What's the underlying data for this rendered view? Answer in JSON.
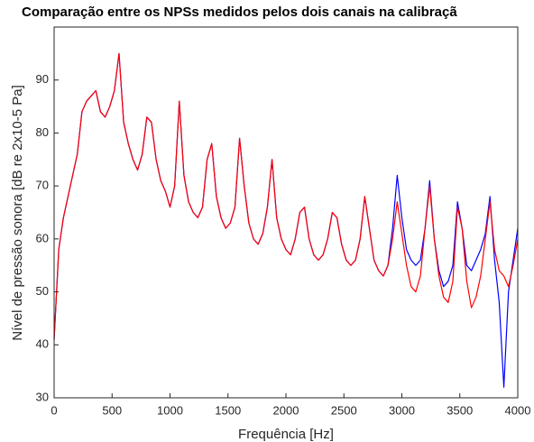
{
  "chart_data": {
    "type": "line",
    "title": "Comparação entre os NPSs medidos pelos dois canais na calibraçã",
    "x_label": "Frequência [Hz]",
    "y_label": "Nível de pressão sonora [dB re 2x10-5 Pa]",
    "x": [
      0,
      40,
      80,
      120,
      160,
      200,
      240,
      280,
      320,
      360,
      400,
      440,
      480,
      520,
      560,
      600,
      640,
      680,
      720,
      760,
      800,
      840,
      880,
      920,
      960,
      1000,
      1040,
      1080,
      1120,
      1160,
      1200,
      1240,
      1280,
      1320,
      1360,
      1400,
      1440,
      1480,
      1520,
      1560,
      1600,
      1640,
      1680,
      1720,
      1760,
      1800,
      1840,
      1880,
      1920,
      1960,
      2000,
      2040,
      2080,
      2120,
      2160,
      2200,
      2240,
      2280,
      2320,
      2360,
      2400,
      2440,
      2480,
      2520,
      2560,
      2600,
      2640,
      2680,
      2720,
      2760,
      2800,
      2840,
      2880,
      2920,
      2960,
      3000,
      3040,
      3080,
      3120,
      3160,
      3200,
      3240,
      3280,
      3320,
      3360,
      3400,
      3440,
      3480,
      3520,
      3560,
      3600,
      3640,
      3680,
      3720,
      3760,
      3800,
      3840,
      3880,
      3920,
      3960,
      4000
    ],
    "series": [
      {
        "color": "#0000ff",
        "values": [
          41,
          58,
          64,
          68,
          72,
          76,
          84,
          86,
          87,
          88,
          84,
          83,
          85,
          88,
          95,
          82,
          78,
          75,
          73,
          76,
          83,
          82,
          75,
          71,
          69,
          66,
          70,
          86,
          72,
          67,
          65,
          64,
          66,
          75,
          78,
          68,
          64,
          62,
          63,
          66,
          79,
          70,
          63,
          60,
          59,
          61,
          66,
          75,
          64,
          60,
          58,
          57,
          60,
          65,
          66,
          60,
          57,
          56,
          57,
          60,
          65,
          64,
          59,
          56,
          55,
          56,
          60,
          68,
          62,
          56,
          54,
          53,
          55,
          62,
          72,
          64,
          58,
          56,
          55,
          56,
          62,
          71,
          60,
          54,
          51,
          52,
          55,
          67,
          62,
          55,
          54,
          56,
          58,
          61,
          68,
          56,
          48,
          32,
          50,
          56,
          62
        ]
      },
      {
        "color": "#ff0000",
        "values": [
          41,
          58,
          64,
          68,
          72,
          76,
          84,
          86,
          87,
          88,
          84,
          83,
          85,
          88,
          95,
          82,
          78,
          75,
          73,
          76,
          83,
          82,
          75,
          71,
          69,
          66,
          70,
          86,
          72,
          67,
          65,
          64,
          66,
          75,
          78,
          68,
          64,
          62,
          63,
          66,
          79,
          70,
          63,
          60,
          59,
          61,
          66,
          75,
          64,
          60,
          58,
          57,
          60,
          65,
          66,
          60,
          57,
          56,
          57,
          60,
          65,
          64,
          59,
          56,
          55,
          56,
          60,
          68,
          62,
          56,
          54,
          53,
          55,
          60,
          67,
          61,
          55,
          51,
          50,
          53,
          62,
          70,
          60,
          53,
          49,
          48,
          52,
          66,
          62,
          52,
          47,
          49,
          53,
          60,
          67,
          58,
          54,
          53,
          51,
          55,
          60
        ]
      }
    ],
    "xlim": [
      0,
      4000
    ],
    "xticks": [
      0,
      500,
      1000,
      1500,
      2000,
      2500,
      3000,
      3500,
      4000
    ],
    "ylim": [
      30,
      100
    ],
    "yticks": [
      30,
      40,
      50,
      60,
      70,
      80,
      90
    ]
  }
}
